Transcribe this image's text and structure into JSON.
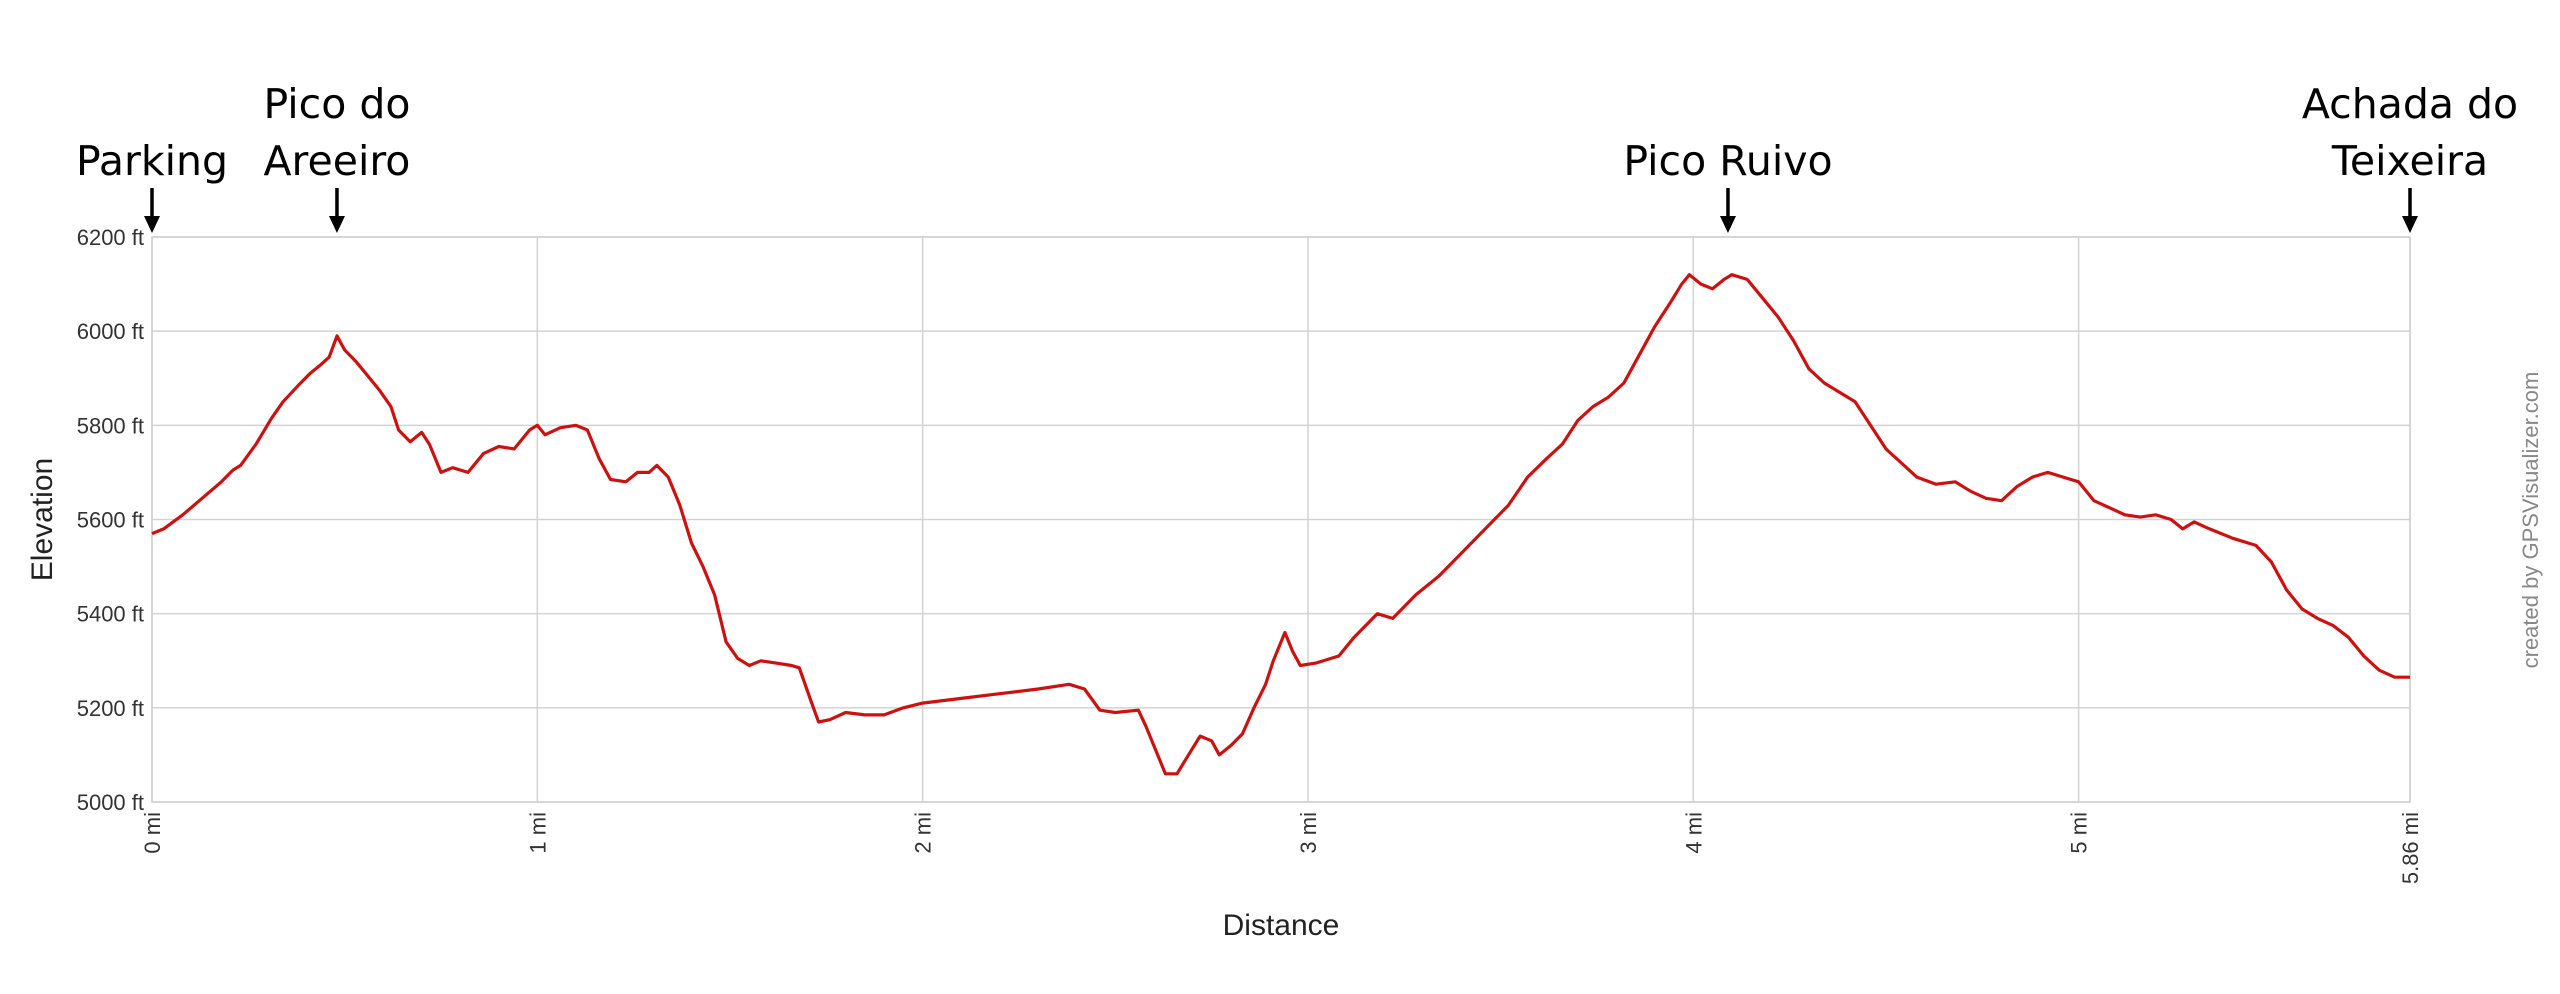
{
  "chart_data": {
    "type": "line",
    "xlabel": "Distance",
    "ylabel": "Elevation",
    "x_unit": "mi",
    "y_unit": "ft",
    "xlim": [
      0,
      5.86
    ],
    "ylim": [
      5000,
      6200
    ],
    "x_ticks": [
      0,
      1,
      2,
      3,
      4,
      5,
      5.86
    ],
    "x_tick_labels": [
      "0 mi",
      "1 mi",
      "2 mi",
      "3 mi",
      "4 mi",
      "5 mi",
      "5.86 mi"
    ],
    "y_ticks": [
      5000,
      5200,
      5400,
      5600,
      5800,
      6000,
      6200
    ],
    "y_tick_labels": [
      "5000 ft",
      "5200 ft",
      "5400 ft",
      "5600 ft",
      "5800 ft",
      "6000 ft",
      "6200 ft"
    ],
    "grid": true,
    "line_color": "#cc1111",
    "credit": "created by GPSVisualizer.com",
    "annotations": [
      {
        "lines": [
          "Parking"
        ],
        "x": 0
      },
      {
        "lines": [
          "Pico do",
          "Areeiro"
        ],
        "x": 0.48
      },
      {
        "lines": [
          "Pico Ruivo"
        ],
        "x": 4.09
      },
      {
        "lines": [
          "Achada do",
          "Teixeira"
        ],
        "x": 5.86
      }
    ],
    "series": [
      {
        "points": [
          [
            0,
            5570
          ],
          [
            0.03,
            5580
          ],
          [
            0.08,
            5610
          ],
          [
            0.13,
            5645
          ],
          [
            0.18,
            5680
          ],
          [
            0.21,
            5705
          ],
          [
            0.23,
            5715
          ],
          [
            0.27,
            5760
          ],
          [
            0.31,
            5815
          ],
          [
            0.34,
            5850
          ],
          [
            0.38,
            5885
          ],
          [
            0.41,
            5910
          ],
          [
            0.44,
            5930
          ],
          [
            0.46,
            5945
          ],
          [
            0.48,
            5990
          ],
          [
            0.49,
            5975
          ],
          [
            0.5,
            5960
          ],
          [
            0.53,
            5935
          ],
          [
            0.56,
            5905
          ],
          [
            0.59,
            5875
          ],
          [
            0.62,
            5840
          ],
          [
            0.64,
            5790
          ],
          [
            0.67,
            5765
          ],
          [
            0.7,
            5785
          ],
          [
            0.72,
            5760
          ],
          [
            0.75,
            5700
          ],
          [
            0.78,
            5710
          ],
          [
            0.82,
            5700
          ],
          [
            0.86,
            5740
          ],
          [
            0.9,
            5755
          ],
          [
            0.94,
            5750
          ],
          [
            0.98,
            5790
          ],
          [
            1.0,
            5800
          ],
          [
            1.02,
            5780
          ],
          [
            1.06,
            5795
          ],
          [
            1.1,
            5800
          ],
          [
            1.13,
            5790
          ],
          [
            1.16,
            5730
          ],
          [
            1.19,
            5685
          ],
          [
            1.23,
            5680
          ],
          [
            1.26,
            5700
          ],
          [
            1.29,
            5700
          ],
          [
            1.31,
            5715
          ],
          [
            1.34,
            5690
          ],
          [
            1.37,
            5630
          ],
          [
            1.4,
            5550
          ],
          [
            1.43,
            5500
          ],
          [
            1.46,
            5440
          ],
          [
            1.49,
            5340
          ],
          [
            1.52,
            5305
          ],
          [
            1.55,
            5290
          ],
          [
            1.58,
            5300
          ],
          [
            1.62,
            5295
          ],
          [
            1.66,
            5290
          ],
          [
            1.68,
            5285
          ],
          [
            1.71,
            5215
          ],
          [
            1.73,
            5170
          ],
          [
            1.76,
            5175
          ],
          [
            1.8,
            5190
          ],
          [
            1.85,
            5185
          ],
          [
            1.9,
            5185
          ],
          [
            1.95,
            5200
          ],
          [
            2.0,
            5210
          ],
          [
            2.1,
            5220
          ],
          [
            2.2,
            5230
          ],
          [
            2.3,
            5240
          ],
          [
            2.38,
            5250
          ],
          [
            2.42,
            5240
          ],
          [
            2.46,
            5195
          ],
          [
            2.5,
            5190
          ],
          [
            2.56,
            5195
          ],
          [
            2.58,
            5160
          ],
          [
            2.6,
            5120
          ],
          [
            2.63,
            5060
          ],
          [
            2.66,
            5060
          ],
          [
            2.69,
            5100
          ],
          [
            2.72,
            5140
          ],
          [
            2.75,
            5130
          ],
          [
            2.77,
            5100
          ],
          [
            2.8,
            5120
          ],
          [
            2.83,
            5145
          ],
          [
            2.86,
            5200
          ],
          [
            2.89,
            5250
          ],
          [
            2.91,
            5300
          ],
          [
            2.94,
            5360
          ],
          [
            2.96,
            5320
          ],
          [
            2.98,
            5290
          ],
          [
            3.02,
            5295
          ],
          [
            3.08,
            5310
          ],
          [
            3.12,
            5350
          ],
          [
            3.18,
            5400
          ],
          [
            3.22,
            5390
          ],
          [
            3.28,
            5440
          ],
          [
            3.34,
            5480
          ],
          [
            3.4,
            5530
          ],
          [
            3.46,
            5580
          ],
          [
            3.52,
            5630
          ],
          [
            3.57,
            5690
          ],
          [
            3.62,
            5730
          ],
          [
            3.66,
            5760
          ],
          [
            3.7,
            5810
          ],
          [
            3.74,
            5840
          ],
          [
            3.78,
            5860
          ],
          [
            3.82,
            5890
          ],
          [
            3.86,
            5950
          ],
          [
            3.9,
            6010
          ],
          [
            3.94,
            6060
          ],
          [
            3.97,
            6100
          ],
          [
            3.99,
            6120
          ],
          [
            4.02,
            6100
          ],
          [
            4.05,
            6090
          ],
          [
            4.08,
            6110
          ],
          [
            4.1,
            6120
          ],
          [
            4.14,
            6110
          ],
          [
            4.18,
            6070
          ],
          [
            4.22,
            6030
          ],
          [
            4.26,
            5980
          ],
          [
            4.3,
            5920
          ],
          [
            4.34,
            5890
          ],
          [
            4.38,
            5870
          ],
          [
            4.42,
            5850
          ],
          [
            4.46,
            5800
          ],
          [
            4.5,
            5750
          ],
          [
            4.54,
            5720
          ],
          [
            4.58,
            5690
          ],
          [
            4.63,
            5675
          ],
          [
            4.68,
            5680
          ],
          [
            4.72,
            5660
          ],
          [
            4.76,
            5645
          ],
          [
            4.8,
            5640
          ],
          [
            4.84,
            5670
          ],
          [
            4.88,
            5690
          ],
          [
            4.92,
            5700
          ],
          [
            4.96,
            5690
          ],
          [
            5.0,
            5680
          ],
          [
            5.04,
            5640
          ],
          [
            5.08,
            5625
          ],
          [
            5.12,
            5610
          ],
          [
            5.16,
            5605
          ],
          [
            5.2,
            5610
          ],
          [
            5.24,
            5600
          ],
          [
            5.27,
            5580
          ],
          [
            5.3,
            5595
          ],
          [
            5.34,
            5580
          ],
          [
            5.4,
            5560
          ],
          [
            5.46,
            5545
          ],
          [
            5.5,
            5510
          ],
          [
            5.54,
            5450
          ],
          [
            5.58,
            5410
          ],
          [
            5.62,
            5390
          ],
          [
            5.66,
            5375
          ],
          [
            5.7,
            5350
          ],
          [
            5.74,
            5310
          ],
          [
            5.78,
            5280
          ],
          [
            5.82,
            5265
          ],
          [
            5.86,
            5265
          ]
        ]
      }
    ]
  }
}
